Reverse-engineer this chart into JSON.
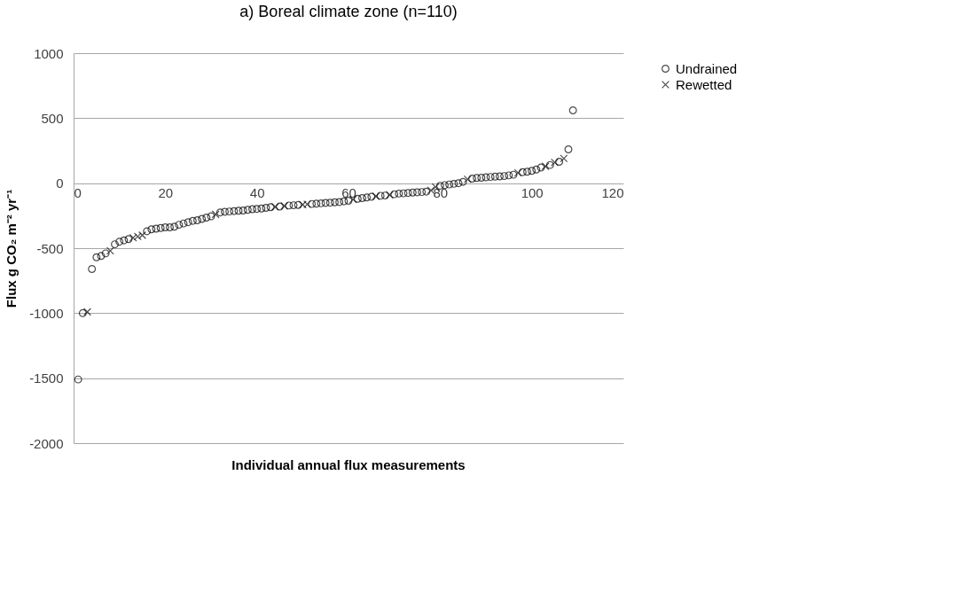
{
  "chart_data": {
    "type": "scatter",
    "title": "a) Boreal climate zone (n=110)",
    "xlabel": "Individual annual flux measurements",
    "ylabel": "Flux g CO₂ m⁻² yr⁻¹",
    "xlim": [
      0,
      120
    ],
    "xticks": [
      0,
      20,
      40,
      60,
      80,
      100,
      120
    ],
    "ylim": [
      -2000,
      1000
    ],
    "yticks": [
      -2000,
      -1500,
      -1000,
      -500,
      0,
      500,
      1000
    ],
    "grid": "y",
    "legend": "right",
    "series": [
      {
        "name": "Undrained",
        "color": "#000000",
        "marker": "circle",
        "x": [
          1,
          2,
          4,
          5,
          6,
          7,
          9,
          10,
          11,
          12,
          16,
          17,
          18,
          19,
          20,
          21,
          22,
          23,
          24,
          25,
          26,
          27,
          28,
          29,
          30,
          32,
          33,
          34,
          35,
          36,
          37,
          38,
          39,
          40,
          41,
          42,
          43,
          45,
          47,
          48,
          49,
          52,
          53,
          54,
          55,
          56,
          57,
          58,
          59,
          60,
          62,
          63,
          64,
          65,
          67,
          68,
          70,
          71,
          72,
          73,
          74,
          75,
          76,
          77,
          80,
          81,
          82,
          83,
          84,
          85,
          87,
          88,
          89,
          90,
          91,
          92,
          93,
          94,
          95,
          96,
          98,
          99,
          100,
          101,
          102,
          104,
          106,
          108,
          109
        ],
        "values": [
          -1510,
          -1000,
          -660,
          -570,
          -560,
          -540,
          -470,
          -450,
          -440,
          -430,
          -370,
          -355,
          -350,
          -345,
          -340,
          -340,
          -335,
          -320,
          -310,
          -300,
          -290,
          -285,
          -275,
          -265,
          -255,
          -225,
          -220,
          -218,
          -215,
          -212,
          -210,
          -205,
          -200,
          -198,
          -195,
          -190,
          -185,
          -180,
          -172,
          -170,
          -168,
          -160,
          -158,
          -155,
          -152,
          -150,
          -147,
          -145,
          -140,
          -135,
          -120,
          -115,
          -110,
          -105,
          -97,
          -95,
          -85,
          -80,
          -78,
          -75,
          -72,
          -70,
          -68,
          -65,
          -20,
          -15,
          -10,
          -5,
          0,
          10,
          35,
          40,
          42,
          45,
          48,
          50,
          52,
          55,
          60,
          65,
          85,
          88,
          95,
          105,
          120,
          140,
          165,
          260,
          560
        ]
      },
      {
        "name": "Rewetted",
        "color": "#000000",
        "marker": "cross",
        "x": [
          3,
          8,
          13,
          14,
          15,
          31,
          44,
          46,
          50,
          51,
          61,
          66,
          69,
          78,
          79,
          86,
          97,
          103,
          105,
          107
        ],
        "values": [
          -990,
          -520,
          -420,
          -410,
          -400,
          -240,
          -182,
          -175,
          -165,
          -163,
          -125,
          -100,
          -90,
          -55,
          -30,
          30,
          80,
          130,
          160,
          190
        ]
      }
    ]
  }
}
